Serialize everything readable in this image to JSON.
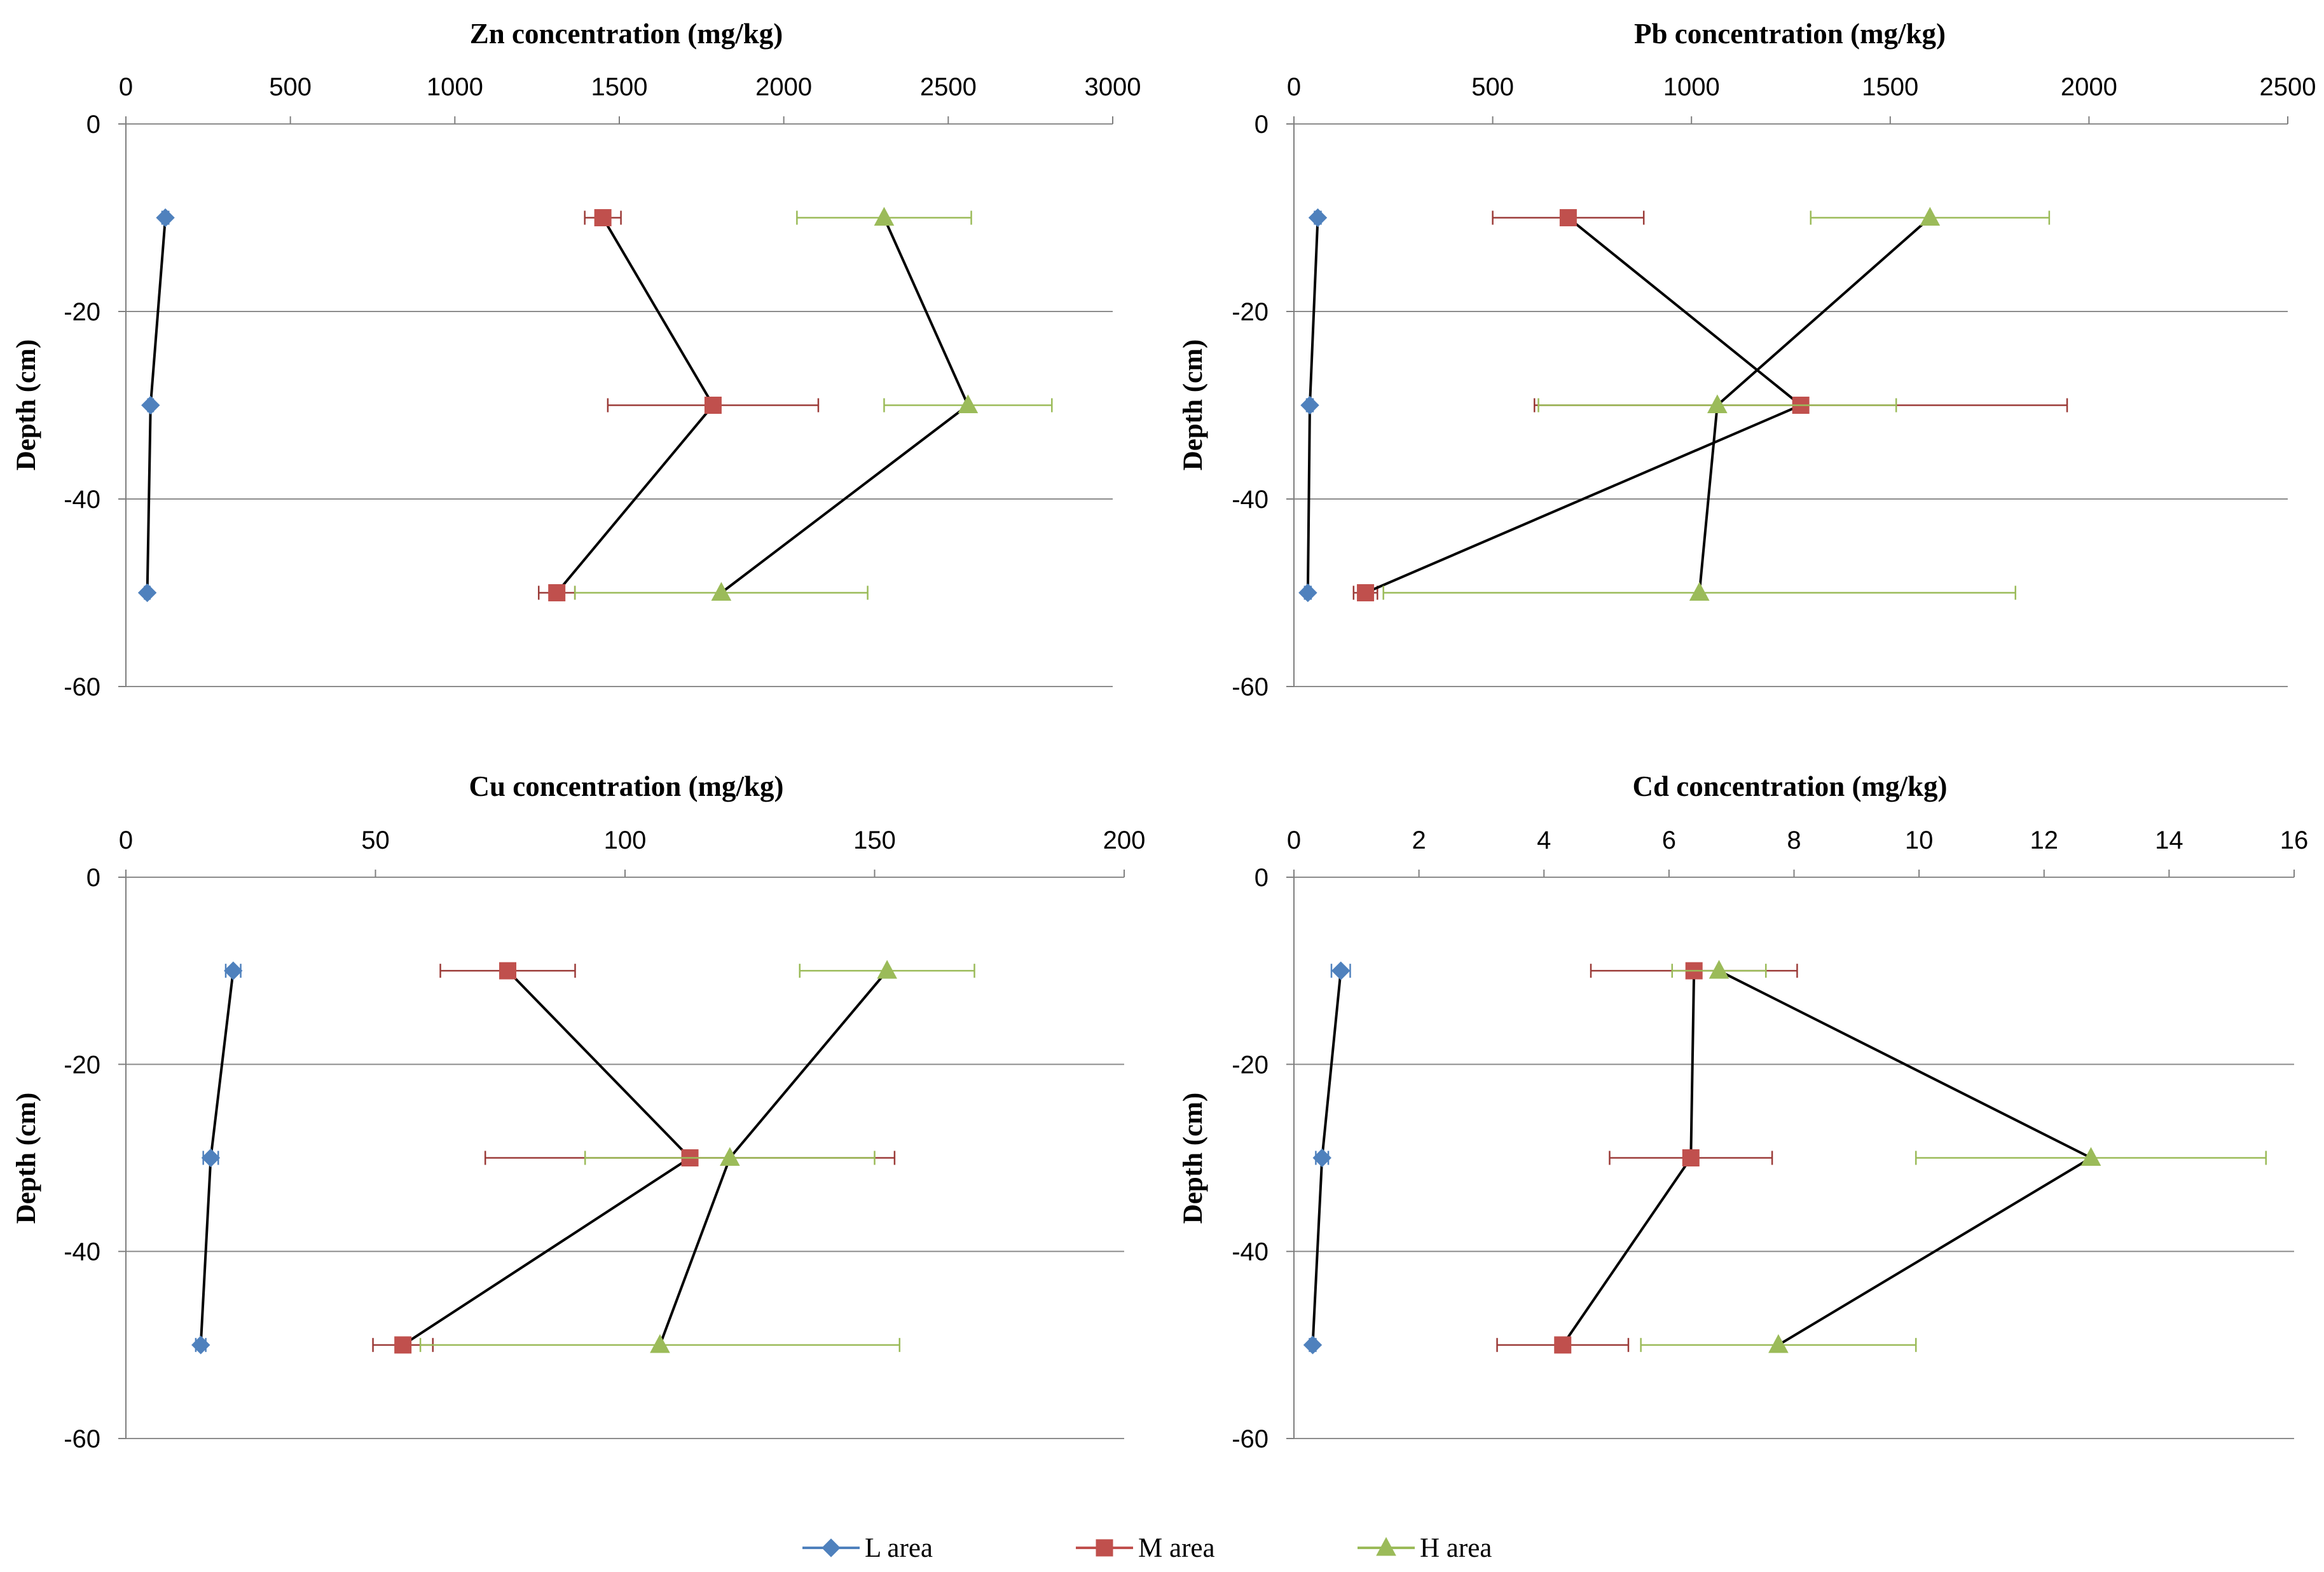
{
  "chart_data": [
    {
      "type": "line",
      "title": "Zn concentration (mg/kg)",
      "xlabel": "Zn concentration (mg/kg)",
      "ylabel": "Depth (cm)",
      "xlim": [
        0,
        3000
      ],
      "xticks": [
        0,
        500,
        1000,
        1500,
        2000,
        2500,
        3000
      ],
      "ylim": [
        -60,
        0
      ],
      "yticks": [
        0,
        -20,
        -40,
        -60
      ],
      "grid": true,
      "depths": [
        -10,
        -30,
        -50
      ],
      "series": [
        {
          "name": "L area",
          "values": [
            120,
            75,
            65
          ],
          "errors": [
            10,
            8,
            8
          ]
        },
        {
          "name": "M area",
          "values": [
            1450,
            1785,
            1310
          ],
          "errors": [
            55,
            320,
            55
          ]
        },
        {
          "name": "H area",
          "values": [
            2305,
            2560,
            1810
          ],
          "errors": [
            265,
            255,
            445
          ]
        }
      ]
    },
    {
      "type": "line",
      "title": "Pb concentration (mg/kg)",
      "xlabel": "Pb concentration (mg/kg)",
      "ylabel": "Depth (cm)",
      "xlim": [
        0,
        2500
      ],
      "xticks": [
        0,
        500,
        1000,
        1500,
        2000,
        2500
      ],
      "ylim": [
        -60,
        0
      ],
      "yticks": [
        0,
        -20,
        -40,
        -60
      ],
      "grid": true,
      "depths": [
        -10,
        -30,
        -50
      ],
      "series": [
        {
          "name": "L area",
          "values": [
            60,
            40,
            35
          ],
          "errors": [
            8,
            8,
            8
          ]
        },
        {
          "name": "M area",
          "values": [
            690,
            1275,
            180
          ],
          "errors": [
            190,
            670,
            30
          ]
        },
        {
          "name": "H area",
          "values": [
            1600,
            1065,
            1020
          ],
          "errors": [
            300,
            450,
            795
          ]
        }
      ]
    },
    {
      "type": "line",
      "title": "Cu concentration (mg/kg)",
      "xlabel": "Cu concentration (mg/kg)",
      "ylabel": "Depth (cm)",
      "xlim": [
        0,
        200
      ],
      "xticks": [
        0,
        50,
        100,
        150,
        200
      ],
      "ylim": [
        -60,
        0
      ],
      "yticks": [
        0,
        -20,
        -40,
        -60
      ],
      "grid": true,
      "depths": [
        -10,
        -30,
        -50
      ],
      "series": [
        {
          "name": "L area",
          "values": [
            21.5,
            17,
            15
          ],
          "errors": [
            1.5,
            1.5,
            1
          ]
        },
        {
          "name": "M area",
          "values": [
            76.5,
            113,
            55.5
          ],
          "errors": [
            13.5,
            41,
            6
          ]
        },
        {
          "name": "H area",
          "values": [
            152.5,
            121,
            107
          ],
          "errors": [
            17.5,
            29,
            48
          ]
        }
      ]
    },
    {
      "type": "line",
      "title": "Cd concentration (mg/kg)",
      "xlabel": "Cd concentration (mg/kg)",
      "ylabel": "Depth (cm)",
      "xlim": [
        0,
        16
      ],
      "xticks": [
        0,
        2,
        4,
        6,
        8,
        10,
        12,
        14,
        16
      ],
      "ylim": [
        -60,
        0
      ],
      "yticks": [
        0,
        -20,
        -40,
        -60
      ],
      "grid": true,
      "depths": [
        -10,
        -30,
        -50
      ],
      "series": [
        {
          "name": "L area",
          "values": [
            0.75,
            0.45,
            0.3
          ],
          "errors": [
            0.15,
            0.1,
            0.05
          ]
        },
        {
          "name": "M area",
          "values": [
            6.4,
            6.35,
            4.3
          ],
          "errors": [
            1.65,
            1.3,
            1.05
          ]
        },
        {
          "name": "H area",
          "values": [
            6.8,
            12.75,
            7.75
          ],
          "errors": [
            0.75,
            2.8,
            2.2
          ]
        }
      ]
    }
  ],
  "legend": {
    "position": "bottom",
    "items": [
      {
        "label": "L area",
        "color": "#4F81BD",
        "marker": "diamond"
      },
      {
        "label": "M area",
        "color": "#C0504D",
        "marker": "square"
      },
      {
        "label": "H area",
        "color": "#9BBB59",
        "marker": "triangle"
      }
    ]
  },
  "colors": {
    "connector": "#000000",
    "gridline": "#8C8C8C",
    "axis": "#7F7F7F",
    "error_bars": [
      "#4F81BD",
      "#9B3B38",
      "#9BBB59"
    ]
  }
}
